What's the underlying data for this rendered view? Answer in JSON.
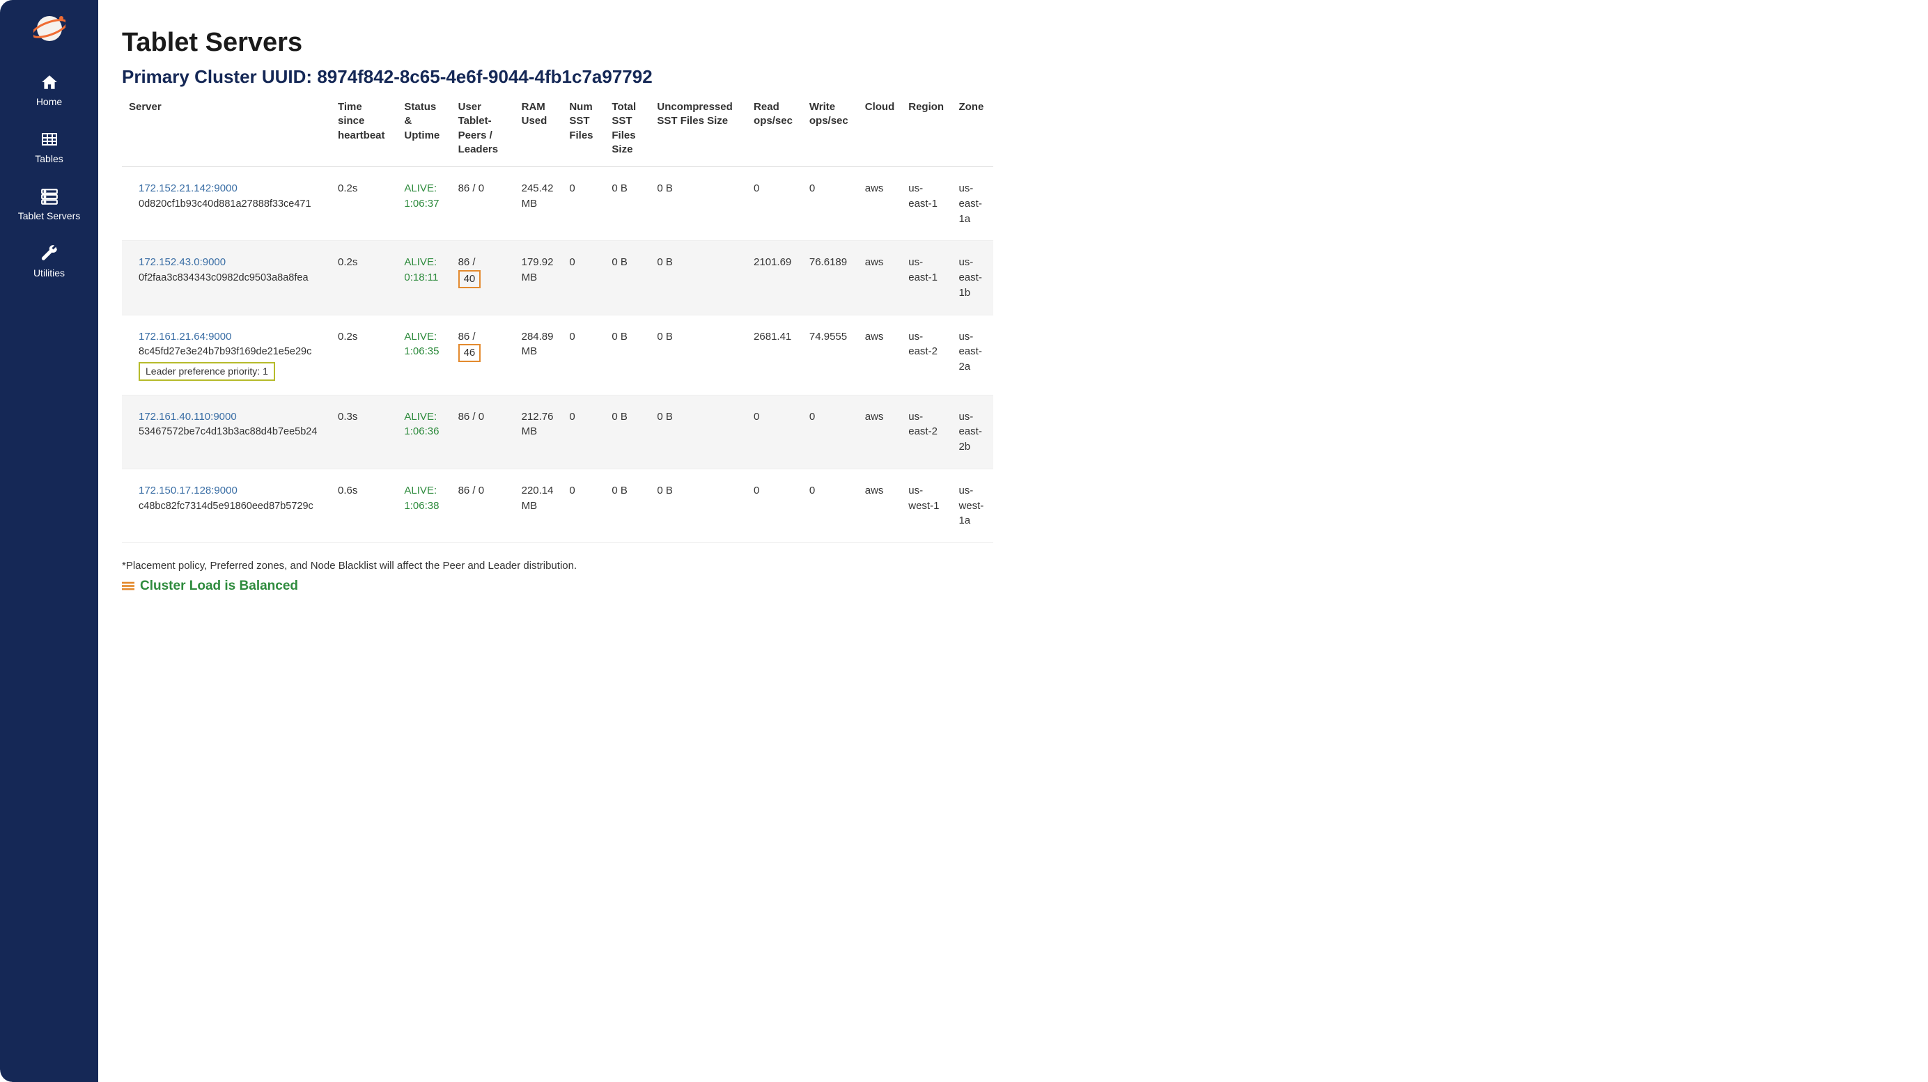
{
  "sidebar": {
    "items": [
      {
        "label": "Home"
      },
      {
        "label": "Tables"
      },
      {
        "label": "Tablet Servers"
      },
      {
        "label": "Utilities"
      }
    ]
  },
  "page": {
    "title": "Tablet Servers",
    "subtitle_prefix": "Primary Cluster UUID: ",
    "cluster_uuid": "8974f842-8c65-4e6f-9044-4fb1c7a97792",
    "footnote": "*Placement policy, Preferred zones, and Node Blacklist will affect the Peer and Leader distribution.",
    "cluster_load_text": "Cluster Load is Balanced"
  },
  "table": {
    "columns": [
      "Server",
      "Time since heartbeat",
      "Status & Uptime",
      "User Tablet-Peers / Leaders",
      "RAM Used",
      "Num SST Files",
      "Total SST Files Size",
      "Uncompressed SST Files Size",
      "Read ops/sec",
      "Write ops/sec",
      "Cloud",
      "Region",
      "Zone"
    ],
    "rows": [
      {
        "server_link": "172.152.21.142:9000",
        "server_uuid": "0d820cf1b93c40d881a27888f33ce471",
        "leader_pref": "",
        "heartbeat": "0.2s",
        "status": "ALIVE:",
        "uptime": "1:06:37",
        "peers": "86 / 0",
        "leaders_highlight": "",
        "ram": "245.42 MB",
        "num_sst": "0",
        "total_sst": "0 B",
        "uncomp_sst": "0 B",
        "read_ops": "0",
        "write_ops": "0",
        "cloud": "aws",
        "region": "us-east-1",
        "zone": "us-east-1a"
      },
      {
        "server_link": "172.152.43.0:9000",
        "server_uuid": "0f2faa3c834343c0982dc9503a8a8fea",
        "leader_pref": "",
        "heartbeat": "0.2s",
        "status": "ALIVE:",
        "uptime": "0:18:11",
        "peers": "86 /",
        "leaders_highlight": "40",
        "ram": "179.92 MB",
        "num_sst": "0",
        "total_sst": "0 B",
        "uncomp_sst": "0 B",
        "read_ops": "2101.69",
        "write_ops": "76.6189",
        "cloud": "aws",
        "region": "us-east-1",
        "zone": "us-east-1b"
      },
      {
        "server_link": "172.161.21.64:9000",
        "server_uuid": "8c45fd27e3e24b7b93f169de21e5e29c",
        "leader_pref": "Leader preference priority: 1",
        "heartbeat": "0.2s",
        "status": "ALIVE:",
        "uptime": "1:06:35",
        "peers": "86 /",
        "leaders_highlight": "46",
        "ram": "284.89 MB",
        "num_sst": "0",
        "total_sst": "0 B",
        "uncomp_sst": "0 B",
        "read_ops": "2681.41",
        "write_ops": "74.9555",
        "cloud": "aws",
        "region": "us-east-2",
        "zone": "us-east-2a"
      },
      {
        "server_link": "172.161.40.110:9000",
        "server_uuid": "53467572be7c4d13b3ac88d4b7ee5b24",
        "leader_pref": "",
        "heartbeat": "0.3s",
        "status": "ALIVE:",
        "uptime": "1:06:36",
        "peers": "86 / 0",
        "leaders_highlight": "",
        "ram": "212.76 MB",
        "num_sst": "0",
        "total_sst": "0 B",
        "uncomp_sst": "0 B",
        "read_ops": "0",
        "write_ops": "0",
        "cloud": "aws",
        "region": "us-east-2",
        "zone": "us-east-2b"
      },
      {
        "server_link": "172.150.17.128:9000",
        "server_uuid": "c48bc82fc7314d5e91860eed87b5729c",
        "leader_pref": "",
        "heartbeat": "0.6s",
        "status": "ALIVE:",
        "uptime": "1:06:38",
        "peers": "86 / 0",
        "leaders_highlight": "",
        "ram": "220.14 MB",
        "num_sst": "0",
        "total_sst": "0 B",
        "uncomp_sst": "0 B",
        "read_ops": "0",
        "write_ops": "0",
        "cloud": "aws",
        "region": "us-west-1",
        "zone": "us-west-1a"
      }
    ]
  },
  "colors": {
    "sidebar_bg": "#152856",
    "link": "#3a6ea5",
    "alive": "#2e8b3d",
    "highlight_border": "#e38a2e",
    "leader_pref_border": "#b6bb2b"
  }
}
